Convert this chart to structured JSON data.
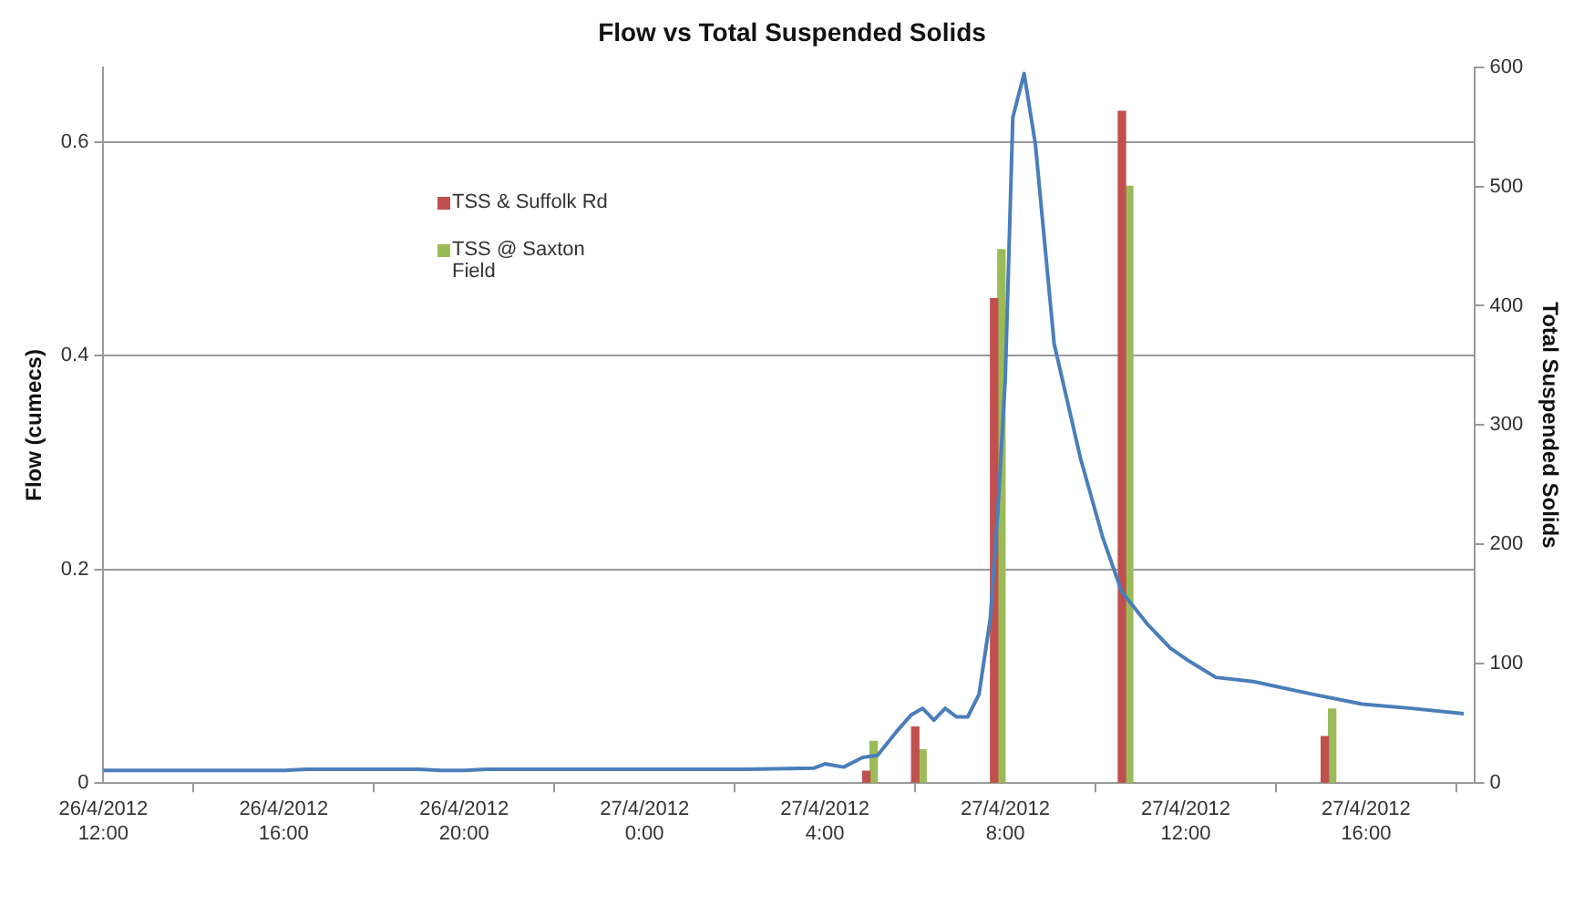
{
  "chart_data": {
    "type": "bar",
    "title": "Flow vs Total Suspended Solids",
    "ylabel": "Flow (cumecs)",
    "y2label": "Total Suspended Solids",
    "xlim": [
      "2012-04-26T12:00",
      "2012-04-27T18:25"
    ],
    "xticks": [
      {
        "value": "2012-04-26T12:00",
        "label": "26/4/2012 12:00"
      },
      {
        "value": "2012-04-26T16:00",
        "label": "26/4/2012 16:00"
      },
      {
        "value": "2012-04-26T20:00",
        "label": "26/4/2012 20:00"
      },
      {
        "value": "2012-04-27T00:00",
        "label": "27/4/2012 0:00"
      },
      {
        "value": "2012-04-27T04:00",
        "label": "27/4/2012 4:00"
      },
      {
        "value": "2012-04-27T08:00",
        "label": "27/4/2012 8:00"
      },
      {
        "value": "2012-04-27T12:00",
        "label": "27/4/2012 12:00"
      },
      {
        "value": "2012-04-27T16:00",
        "label": "27/4/2012 16:00"
      }
    ],
    "ylim": [
      0,
      0.67
    ],
    "yticks": [
      0,
      0.2,
      0.4,
      0.6
    ],
    "y2lim": [
      0,
      600
    ],
    "y2ticks": [
      0,
      100,
      200,
      300,
      400,
      500,
      600
    ],
    "grid": "y",
    "legend": "top left",
    "marker": "none",
    "series": [
      {
        "type": "line",
        "color": "#4a7ebb",
        "x": [
          "2012-04-26T12:00",
          "2012-04-26T16:00",
          "2012-04-26T16:30",
          "2012-04-26T19:00",
          "2012-04-26T19:30",
          "2012-04-26T20:00",
          "2012-04-26T20:30",
          "2012-04-27T02:15",
          "2012-04-27T03:45",
          "2012-04-27T04:00",
          "2012-04-27T04:25",
          "2012-04-27T04:50",
          "2012-04-27T05:10",
          "2012-04-27T05:35",
          "2012-04-27T05:55",
          "2012-04-27T06:10",
          "2012-04-27T06:25",
          "2012-04-27T06:40",
          "2012-04-27T06:55",
          "2012-04-27T07:10",
          "2012-04-27T07:25",
          "2012-04-27T07:40",
          "2012-04-27T07:50",
          "2012-04-27T08:00",
          "2012-04-27T08:10",
          "2012-04-27T08:25",
          "2012-04-27T08:40",
          "2012-04-27T09:05",
          "2012-04-27T09:40",
          "2012-04-27T10:10",
          "2012-04-27T10:35",
          "2012-04-27T11:10",
          "2012-04-27T11:40",
          "2012-04-27T12:05",
          "2012-04-27T12:40",
          "2012-04-27T13:30",
          "2012-04-27T14:50",
          "2012-04-27T15:55",
          "2012-04-27T17:00",
          "2012-04-27T18:10"
        ],
        "values": [
          0.012,
          0.012,
          0.013,
          0.013,
          0.012,
          0.012,
          0.013,
          0.013,
          0.014,
          0.018,
          0.015,
          0.024,
          0.026,
          0.048,
          0.064,
          0.07,
          0.059,
          0.07,
          0.062,
          0.062,
          0.083,
          0.154,
          0.254,
          0.379,
          0.623,
          0.664,
          0.598,
          0.411,
          0.304,
          0.229,
          0.179,
          0.148,
          0.126,
          0.114,
          0.099,
          0.095,
          0.083,
          0.074,
          0.07,
          0.065
        ]
      },
      {
        "name": "TSS & Suffolk Rd",
        "color": "#c0504d",
        "axis": "y2",
        "x": [
          "2012-04-27T05:00",
          "2012-04-27T06:05",
          "2012-04-27T07:50",
          "2012-04-27T10:40",
          "2012-04-27T15:10"
        ],
        "values": [
          10,
          47,
          406,
          563,
          39
        ]
      },
      {
        "name": "TSS @ Saxton Field",
        "color": "#9bbb59",
        "axis": "y2",
        "x": [
          "2012-04-27T05:00",
          "2012-04-27T06:05",
          "2012-04-27T07:50",
          "2012-04-27T10:40",
          "2012-04-27T15:10"
        ],
        "values": [
          35,
          28,
          447,
          500,
          62
        ]
      }
    ]
  }
}
